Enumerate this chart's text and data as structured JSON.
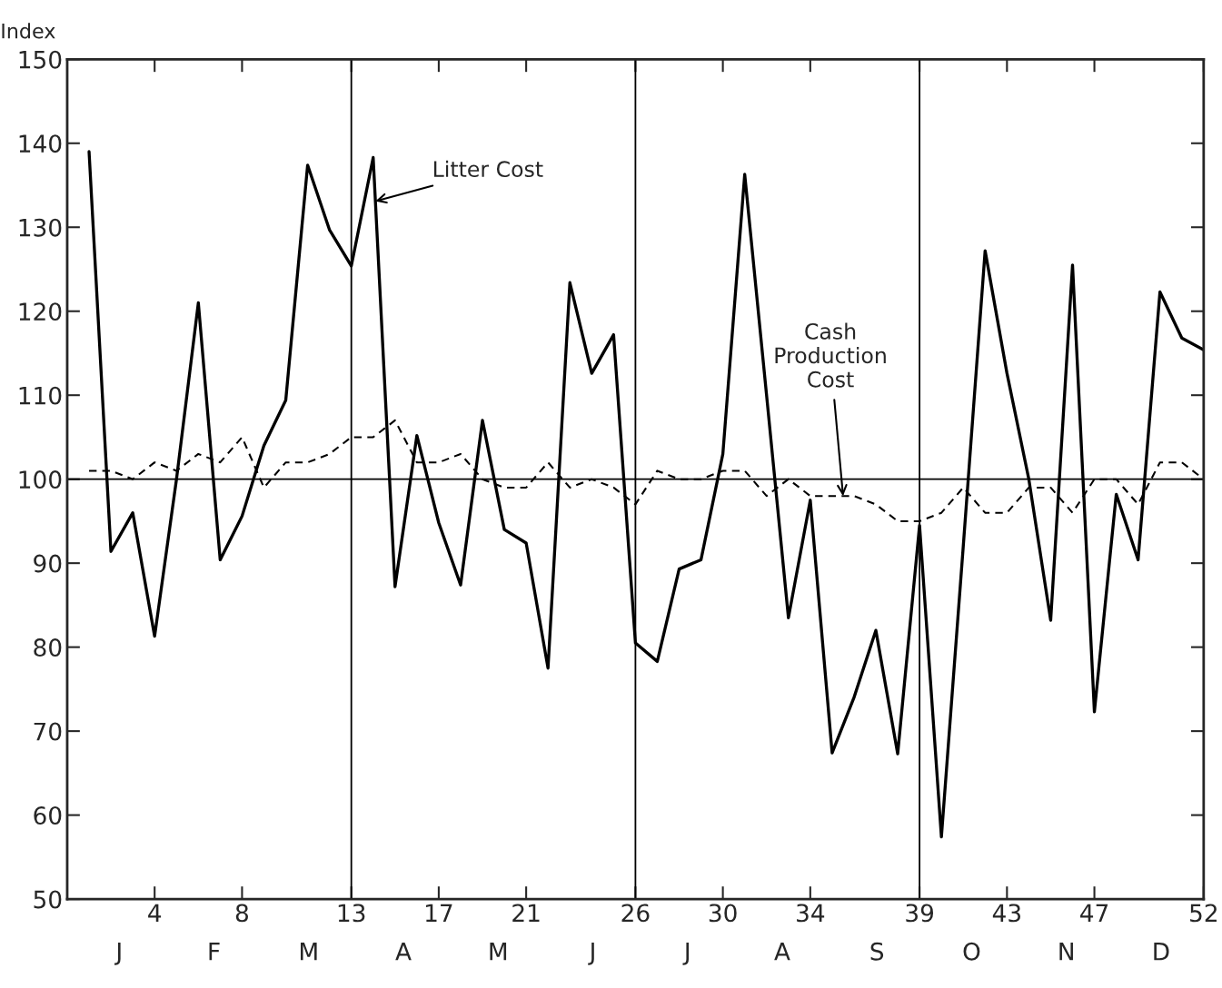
{
  "chart_data": {
    "type": "line",
    "ylabel": "Index",
    "x": [
      1,
      2,
      3,
      4,
      5,
      6,
      7,
      8,
      9,
      10,
      11,
      12,
      13,
      14,
      15,
      16,
      17,
      18,
      19,
      20,
      21,
      22,
      23,
      24,
      25,
      26,
      27,
      28,
      29,
      30,
      31,
      32,
      33,
      34,
      35,
      36,
      37,
      38,
      39,
      40,
      41,
      42,
      43,
      44,
      45,
      46,
      47,
      48,
      49,
      50,
      51,
      52
    ],
    "series": [
      {
        "color": "#000000",
        "line_style": "solid",
        "values": [
          139,
          91.4,
          96,
          81.3,
          100,
          121,
          90.4,
          95.6,
          104,
          109.4,
          137.4,
          129.7,
          125.4,
          138.3,
          87.2,
          105.2,
          94.8,
          87.4,
          107,
          94,
          92.4,
          77.5,
          123.4,
          112.6,
          117.2,
          80.5,
          78.3,
          89.3,
          90.4,
          103,
          136.3,
          110,
          83.5,
          97.5,
          67.4,
          74,
          82,
          67.3,
          94.5,
          57.4,
          92,
          127.2,
          112.6,
          100,
          83.2,
          125.5,
          72.3,
          98.2,
          90.4,
          122.3,
          116.8,
          115.4
        ]
      },
      {
        "color": "#000000",
        "line_style": "dashed",
        "values": [
          101,
          101,
          100,
          102,
          101,
          103,
          102,
          105,
          99,
          102,
          102,
          103,
          105,
          105,
          107,
          102,
          102,
          103,
          100,
          99,
          99,
          102,
          99,
          100,
          99,
          97,
          101,
          100,
          100,
          101,
          101,
          98,
          100,
          98,
          98,
          98,
          97,
          95,
          95,
          96,
          99,
          96,
          96,
          99,
          99,
          96,
          100,
          100,
          97,
          102,
          102,
          100
        ]
      }
    ],
    "xlim": [
      0,
      52
    ],
    "xticks": [
      4,
      8,
      13,
      17,
      21,
      26,
      30,
      34,
      39,
      43,
      47,
      52
    ],
    "ylim": [
      50,
      150
    ],
    "yticks": [
      50,
      60,
      70,
      80,
      90,
      100,
      110,
      120,
      130,
      140,
      150
    ],
    "ref_lines": [
      {
        "axis": "y",
        "value": 100
      },
      {
        "axis": "x",
        "value": 13
      },
      {
        "axis": "x",
        "value": 26
      },
      {
        "axis": "x",
        "value": 39
      }
    ],
    "grid": false,
    "legend": false,
    "annotations": [
      {
        "text": "Litter Cost",
        "x": 14.1,
        "y": 133.1
      },
      {
        "text": "Cash\nProduction\nCost",
        "x": 35.5,
        "y": 98
      },
      "J",
      "F",
      "M",
      "A",
      "M",
      "J",
      "J",
      "A",
      "S",
      "O",
      "N",
      "D"
    ]
  }
}
